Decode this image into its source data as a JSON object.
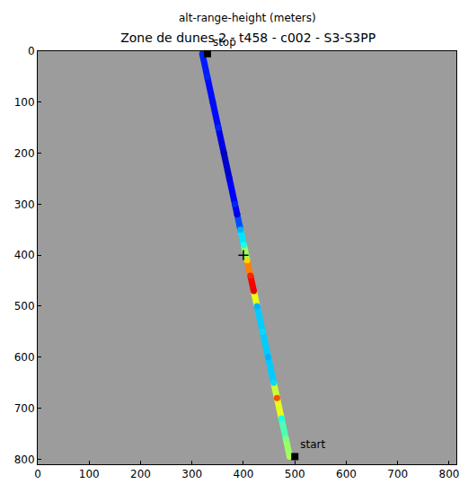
{
  "chart_data": {
    "type": "track",
    "title": "Zone de dunes 2 - t458 - c002 - S3-S3PP",
    "subtitle": "alt-range-height (meters)",
    "xlim": [
      0,
      814
    ],
    "ylim": [
      810,
      0
    ],
    "xticks": [
      0,
      100,
      200,
      300,
      400,
      500,
      600,
      700,
      800
    ],
    "yticks": [
      0,
      100,
      200,
      300,
      400,
      500,
      600,
      700,
      800
    ],
    "grid": false,
    "color": "jet",
    "clim": [
      0,
      1
    ],
    "x": [
      490,
      482.5,
      473.9,
      465.3,
      458.8,
      448.0,
      437.3,
      426.5,
      420.1,
      413.6,
      407.1,
      400.7,
      394.2,
      387.8,
      383.5,
      372.7,
      362.0,
      351.2,
      340.4,
      329.7,
      320.0
    ],
    "y": [
      795,
      760,
      720,
      680,
      650,
      600,
      550,
      500,
      470,
      440,
      410,
      380,
      350,
      320,
      300,
      250,
      200,
      150,
      100,
      50,
      5
    ],
    "values": [
      0.55,
      0.5,
      0.4,
      0.8,
      0.35,
      0.3,
      0.35,
      0.3,
      0.9,
      0.85,
      0.65,
      0.4,
      0.3,
      0.1,
      0.15,
      0.1,
      0.05,
      0.15,
      0.12,
      0.15,
      0.15
    ],
    "markers": [
      {
        "label": "start",
        "x": 500,
        "y": 795,
        "marker": "square"
      },
      {
        "label": "stop",
        "x": 330,
        "y": 5,
        "marker": "square"
      }
    ],
    "center": {
      "x": 400,
      "y": 400,
      "marker": "cross"
    }
  }
}
